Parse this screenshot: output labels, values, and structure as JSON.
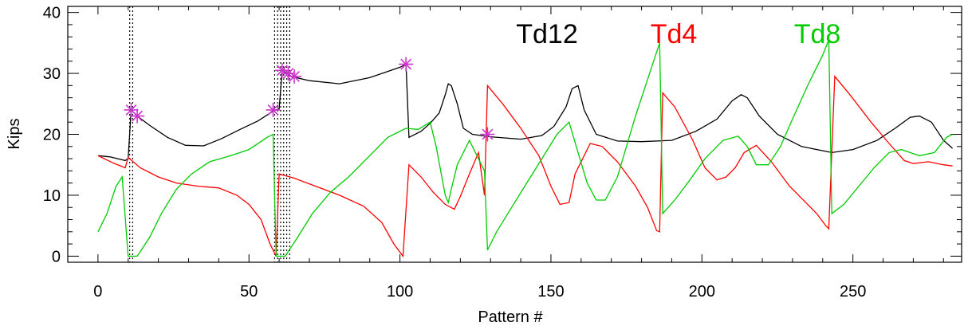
{
  "chart_data": {
    "type": "line",
    "xlabel": "Pattern #",
    "ylabel": "Kips",
    "xlim": [
      -10,
      286
    ],
    "ylim": [
      -1,
      41
    ],
    "xticks": [
      0,
      50,
      100,
      150,
      200,
      250
    ],
    "yticks": [
      0,
      10,
      20,
      30,
      40
    ],
    "x_tick_labels": [
      "0",
      "50",
      "100",
      "150",
      "200",
      "250"
    ],
    "y_tick_labels": [
      "0",
      "10",
      "20",
      "30",
      "40"
    ],
    "grid": false,
    "legend_position": "top-center",
    "series": [
      {
        "name": "Td12",
        "color": "#000000",
        "points": [
          [
            0,
            16.5
          ],
          [
            4,
            16.3
          ],
          [
            9,
            15.7
          ],
          [
            10,
            16
          ],
          [
            11,
            24
          ],
          [
            13,
            23
          ],
          [
            17,
            21.5
          ],
          [
            23,
            19.5
          ],
          [
            29,
            18.2
          ],
          [
            35,
            18.1
          ],
          [
            41,
            19.3
          ],
          [
            47,
            20.8
          ],
          [
            53,
            22.2
          ],
          [
            58,
            23.8
          ],
          [
            60,
            24.2
          ],
          [
            61,
            30.5
          ],
          [
            64,
            29.5
          ],
          [
            70,
            28.8
          ],
          [
            80,
            28.3
          ],
          [
            90,
            29.3
          ],
          [
            100,
            31
          ],
          [
            102,
            31.5
          ],
          [
            103,
            19.5
          ],
          [
            107,
            20.5
          ],
          [
            110,
            21.8
          ],
          [
            113,
            23.5
          ],
          [
            115,
            26.5
          ],
          [
            116,
            28.3
          ],
          [
            117,
            28
          ],
          [
            119,
            25
          ],
          [
            121,
            21
          ],
          [
            124,
            20
          ],
          [
            130,
            19.6
          ],
          [
            140,
            19.2
          ],
          [
            147,
            19.8
          ],
          [
            151,
            21.3
          ],
          [
            155,
            24.5
          ],
          [
            157,
            27.5
          ],
          [
            159,
            28
          ],
          [
            161,
            24
          ],
          [
            165,
            20
          ],
          [
            172,
            18.9
          ],
          [
            180,
            18.8
          ],
          [
            190,
            19
          ],
          [
            198,
            20.5
          ],
          [
            205,
            22.5
          ],
          [
            210,
            25.5
          ],
          [
            213,
            26.5
          ],
          [
            215,
            26
          ],
          [
            219,
            23
          ],
          [
            225,
            20
          ],
          [
            233,
            18
          ],
          [
            243,
            17
          ],
          [
            250,
            17.5
          ],
          [
            258,
            19
          ],
          [
            264,
            21
          ],
          [
            269,
            22.8
          ],
          [
            272,
            23
          ],
          [
            276,
            22
          ],
          [
            280,
            19
          ],
          [
            283,
            17.7
          ]
        ]
      },
      {
        "name": "Td4",
        "color": "#ff0000",
        "points": [
          [
            0,
            16.5
          ],
          [
            5,
            15.3
          ],
          [
            9,
            14.5
          ],
          [
            10,
            16.2
          ],
          [
            14,
            14.5
          ],
          [
            20,
            13
          ],
          [
            26,
            12
          ],
          [
            33,
            11.5
          ],
          [
            40,
            11.2
          ],
          [
            46,
            10
          ],
          [
            50,
            8.5
          ],
          [
            54,
            6
          ],
          [
            57,
            2
          ],
          [
            59,
            0
          ],
          [
            60,
            13.5
          ],
          [
            65,
            12.8
          ],
          [
            72,
            11.5
          ],
          [
            80,
            10
          ],
          [
            88,
            8.2
          ],
          [
            94,
            5.5
          ],
          [
            98,
            2
          ],
          [
            101,
            0
          ],
          [
            103,
            15
          ],
          [
            107,
            13
          ],
          [
            111,
            10.5
          ],
          [
            115,
            8.5
          ],
          [
            118,
            7.7
          ],
          [
            120,
            9.8
          ],
          [
            123,
            13.5
          ],
          [
            126,
            17
          ],
          [
            128,
            10
          ],
          [
            129,
            28
          ],
          [
            134,
            25
          ],
          [
            140,
            21
          ],
          [
            146,
            16.5
          ],
          [
            150,
            11.5
          ],
          [
            153,
            8.5
          ],
          [
            156,
            8.8
          ],
          [
            158,
            13.5
          ],
          [
            161,
            16.5
          ],
          [
            163,
            18.5
          ],
          [
            167,
            18
          ],
          [
            172,
            15.5
          ],
          [
            178,
            11.5
          ],
          [
            182,
            8
          ],
          [
            185,
            4.2
          ],
          [
            186,
            4
          ],
          [
            187,
            26.8
          ],
          [
            191,
            24.5
          ],
          [
            197,
            19
          ],
          [
            201,
            14.5
          ],
          [
            205,
            12.5
          ],
          [
            208,
            13
          ],
          [
            211,
            14.5
          ],
          [
            214,
            17
          ],
          [
            218,
            18.2
          ],
          [
            223,
            15.5
          ],
          [
            229,
            11.5
          ],
          [
            234,
            9
          ],
          [
            238,
            7
          ],
          [
            241,
            5
          ],
          [
            242,
            4.5
          ],
          [
            244,
            29.5
          ],
          [
            249,
            26.5
          ],
          [
            256,
            22
          ],
          [
            262,
            18.5
          ],
          [
            267,
            15.7
          ],
          [
            270,
            15.2
          ],
          [
            275,
            15.5
          ],
          [
            280,
            15
          ],
          [
            283,
            14.8
          ]
        ]
      },
      {
        "name": "Td8",
        "color": "#00cc00",
        "points": [
          [
            0,
            4
          ],
          [
            3,
            7
          ],
          [
            6,
            11.5
          ],
          [
            8,
            13
          ],
          [
            10,
            0
          ],
          [
            13,
            0
          ],
          [
            17,
            3
          ],
          [
            21,
            7
          ],
          [
            26,
            11
          ],
          [
            31,
            13.5
          ],
          [
            37,
            15.5
          ],
          [
            44,
            16.5
          ],
          [
            50,
            17.5
          ],
          [
            56,
            19.5
          ],
          [
            58,
            20
          ],
          [
            59,
            0
          ],
          [
            62,
            0
          ],
          [
            66,
            3
          ],
          [
            71,
            7
          ],
          [
            77,
            10.5
          ],
          [
            83,
            13
          ],
          [
            90,
            16.5
          ],
          [
            96,
            19.5
          ],
          [
            102,
            21
          ],
          [
            106,
            20.8
          ],
          [
            110,
            22
          ],
          [
            112,
            18
          ],
          [
            115,
            10
          ],
          [
            116,
            8.8
          ],
          [
            117,
            11
          ],
          [
            119,
            15
          ],
          [
            123,
            19
          ],
          [
            128,
            14
          ],
          [
            129,
            1
          ],
          [
            132,
            4
          ],
          [
            137,
            8
          ],
          [
            142,
            12
          ],
          [
            147,
            16
          ],
          [
            152,
            20
          ],
          [
            156,
            22
          ],
          [
            159,
            17
          ],
          [
            162,
            12
          ],
          [
            165,
            9.2
          ],
          [
            168,
            9.2
          ],
          [
            172,
            13
          ],
          [
            178,
            23
          ],
          [
            184,
            32
          ],
          [
            186,
            35
          ],
          [
            187,
            7
          ],
          [
            191,
            9.2
          ],
          [
            196,
            12.5
          ],
          [
            201,
            16
          ],
          [
            207,
            19
          ],
          [
            212,
            19.7
          ],
          [
            215,
            18
          ],
          [
            218,
            15
          ],
          [
            222,
            15
          ],
          [
            226,
            18
          ],
          [
            230,
            22.5
          ],
          [
            235,
            28
          ],
          [
            240,
            33
          ],
          [
            242,
            35.5
          ],
          [
            243,
            7
          ],
          [
            247,
            8.5
          ],
          [
            252,
            11.5
          ],
          [
            257,
            14.5
          ],
          [
            262,
            17
          ],
          [
            266,
            17.5
          ],
          [
            272,
            16.5
          ],
          [
            277,
            17
          ],
          [
            281,
            19.5
          ],
          [
            283,
            20
          ]
        ]
      }
    ],
    "markers": {
      "symbol": "asterisk",
      "color": "#cc33cc",
      "points": [
        [
          11,
          24
        ],
        [
          13,
          23
        ],
        [
          58,
          24
        ],
        [
          61,
          30.5
        ],
        [
          63,
          30
        ],
        [
          65,
          29.5
        ],
        [
          102,
          31.5
        ],
        [
          129,
          20
        ]
      ]
    },
    "vertical_dotted_lines_x": [
      10.5,
      11.5,
      58.5,
      59.5,
      60.5,
      61.5,
      62.5,
      63.5
    ]
  }
}
